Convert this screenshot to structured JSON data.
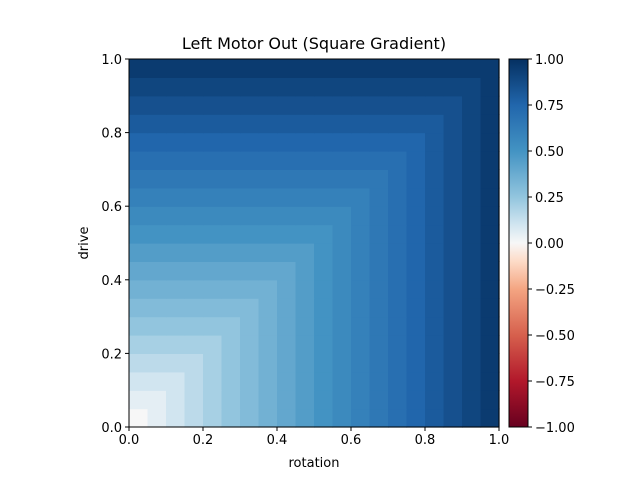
{
  "chart_data": {
    "type": "heatmap",
    "title": "Left Motor Out (Square Gradient)",
    "xlabel": "rotation",
    "ylabel": "drive",
    "xlim": [
      0.0,
      1.0
    ],
    "ylim": [
      0.0,
      1.0
    ],
    "x_ticks": [
      "0.0",
      "0.2",
      "0.4",
      "0.6",
      "0.8",
      "1.0"
    ],
    "y_ticks": [
      "0.0",
      "0.2",
      "0.4",
      "0.6",
      "0.8",
      "1.0"
    ],
    "grid_size": 20,
    "cell_step": 0.05,
    "value_rule": "max(rotation, drive)",
    "values_by_ring": [
      0.0,
      0.05,
      0.1,
      0.15,
      0.2,
      0.25,
      0.3,
      0.35,
      0.4,
      0.45,
      0.5,
      0.55,
      0.6,
      0.65,
      0.7,
      0.75,
      0.8,
      0.85,
      0.9,
      0.95
    ],
    "colormap": "RdBu",
    "colorbar": {
      "range": [
        -1.0,
        1.0
      ],
      "ticks": [
        "1.00",
        "0.75",
        "0.50",
        "0.25",
        "0.00",
        "−0.25",
        "−0.50",
        "−0.75",
        "−1.00"
      ]
    },
    "grid": false
  }
}
